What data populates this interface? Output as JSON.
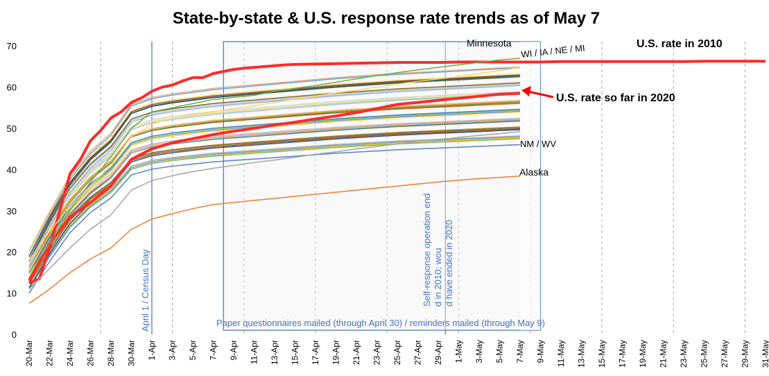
{
  "chart_data": {
    "type": "line",
    "title": "State-by-state & U.S. response rate trends as of May 7",
    "xlabel": "",
    "ylabel": "",
    "ylim": [
      0,
      70
    ],
    "yticks": [
      0,
      10,
      20,
      30,
      40,
      50,
      60,
      70
    ],
    "grid": false,
    "x_categories": [
      "20-Mar",
      "22-Mar",
      "24-Mar",
      "26-Mar",
      "28-Mar",
      "30-Mar",
      "1-Apr",
      "3-Apr",
      "5-Apr",
      "7-Apr",
      "9-Apr",
      "11-Apr",
      "13-Apr",
      "15-Apr",
      "17-Apr",
      "19-Apr",
      "21-Apr",
      "23-Apr",
      "25-Apr",
      "27-Apr",
      "29-Apr",
      "1-May",
      "3-May",
      "5-May",
      "7-May",
      "9-May",
      "11-May",
      "13-May",
      "15-May",
      "17-May",
      "19-May",
      "21-May",
      "23-May",
      "25-May",
      "27-May",
      "29-May",
      "31-May"
    ],
    "series": [
      {
        "name": "U.S. rate in 2010",
        "color": "#ff2a2a",
        "width": 4,
        "x": [
          0,
          1,
          2,
          3,
          4,
          5,
          6,
          7,
          8,
          9,
          10,
          11,
          12,
          13,
          14,
          15,
          16,
          17,
          18,
          19,
          20,
          21,
          22,
          23,
          24,
          25,
          26,
          28,
          30,
          32,
          34,
          36,
          38,
          40,
          42,
          44,
          46,
          48,
          50,
          52,
          54,
          56,
          58,
          60,
          62,
          64,
          66,
          68,
          70,
          72
        ],
        "y": [
          12.5,
          13.5,
          21,
          30,
          39,
          42.4,
          47,
          49.5,
          52.5,
          54,
          56.3,
          57.4,
          59,
          60,
          60.5,
          61.5,
          62.3,
          62.3,
          63.3,
          63.8,
          64.3,
          64.6,
          64.8,
          65,
          65.2,
          65.4,
          65.5,
          65.6,
          65.7,
          65.8,
          65.9,
          66,
          66,
          66,
          66.1,
          66.1,
          66.1,
          66.1,
          66.1,
          66.2,
          66.2,
          66.2,
          66.2,
          66.2,
          66.2,
          66.2,
          66.3,
          66.3,
          66.3,
          66.3
        ]
      },
      {
        "name": "U.S. rate so far in 2020",
        "color": "#ff2a2a",
        "width": 4,
        "x": [
          0,
          2,
          4,
          6,
          8,
          10,
          12,
          14,
          16,
          18,
          20,
          22,
          24,
          26,
          28,
          30,
          32,
          34,
          36,
          38,
          40,
          42,
          44,
          46,
          48
        ],
        "y": [
          13,
          22,
          28.5,
          32,
          36,
          42.5,
          45,
          46.5,
          47.5,
          48.5,
          49.3,
          50,
          50.8,
          51.5,
          52.3,
          53,
          53.8,
          54.8,
          55.8,
          56.3,
          56.8,
          57.3,
          57.8,
          58.3,
          58.5
        ]
      },
      {
        "name": "Minnesota",
        "color": "#70ad47",
        "width": 1.5,
        "x": [
          0,
          2,
          4,
          6,
          8,
          10,
          12,
          14,
          16,
          18,
          20,
          22,
          24,
          26,
          28,
          30,
          32,
          34,
          36,
          38,
          40,
          42,
          44,
          46,
          48
        ],
        "y": [
          15,
          22,
          30,
          37,
          43,
          50,
          54,
          55,
          56,
          57,
          57.5,
          58,
          59,
          59.7,
          60.4,
          61.2,
          62,
          62.8,
          63.5,
          64.2,
          64.8,
          65.4,
          66,
          66.6,
          67
        ]
      },
      {
        "name": "WI / IA / NE / MI",
        "color": "#ffd966",
        "width": 1.5,
        "x": [
          0,
          2,
          4,
          6,
          8,
          10,
          12,
          14,
          16,
          18,
          20,
          22,
          24,
          26,
          28,
          30,
          32,
          34,
          36,
          38,
          40,
          42,
          44,
          46,
          48
        ],
        "y": [
          18,
          25,
          31,
          36,
          41,
          48,
          51,
          52.5,
          53.3,
          54,
          54.8,
          55.5,
          56.3,
          57,
          57.8,
          58.6,
          59.3,
          60,
          60.7,
          61.4,
          62,
          62.6,
          63.3,
          64,
          64.8
        ]
      },
      {
        "name": "NM / WV",
        "color": "#a5a5a5",
        "width": 1.5,
        "x": [
          0,
          2,
          4,
          6,
          8,
          10,
          12,
          14,
          16,
          18,
          20,
          22,
          24,
          26,
          28,
          30,
          32,
          34,
          36,
          38,
          40,
          42,
          44,
          46,
          48
        ],
        "y": [
          11,
          16,
          21,
          25.5,
          29,
          35,
          37.3,
          38.5,
          39.5,
          40.3,
          41,
          41.7,
          42.3,
          43,
          43.7,
          44.3,
          45,
          45.6,
          46.2,
          46.8,
          47.3,
          47.8,
          48.3,
          48.7,
          49.2
        ]
      },
      {
        "name": "Alaska",
        "color": "#ed7d31",
        "width": 1.5,
        "x": [
          0,
          2,
          4,
          6,
          8,
          10,
          12,
          14,
          16,
          18,
          20,
          22,
          24,
          26,
          28,
          30,
          32,
          34,
          36,
          38,
          40,
          42,
          44,
          46,
          48
        ],
        "y": [
          7.5,
          11,
          15,
          18.3,
          21,
          25.5,
          28,
          29.3,
          30.5,
          31.5,
          32,
          32.5,
          33,
          33.5,
          34,
          34.5,
          35,
          35.5,
          36,
          36.5,
          37,
          37.4,
          37.8,
          38.1,
          38.4
        ]
      }
    ],
    "annotations": {
      "april1": "April 1 / Census Day",
      "self_response": "Self-response operation ended in 2010; would have ended in 2020",
      "paper": "Paper questionnaires mailed (through April 30) / reminders mailed (through May 9)",
      "us2010": "U.S. rate in 2010",
      "us2020": "U.S. rate so far in 2020",
      "minnesota": "Minnesota",
      "wi": "WI / IA / NE / MI",
      "nmwv": "NM / WV",
      "alaska": "Alaska"
    },
    "bg_palette": [
      "#4472c4",
      "#70ad47",
      "#ffc000",
      "#5b9bd5",
      "#a5a5a5",
      "#264478",
      "#9e480e",
      "#636363",
      "#997300",
      "#43682b",
      "#7cafdd",
      "#f1975a",
      "#b7b7b7",
      "#ffcd33",
      "#698ed0",
      "#8cc168",
      "#2e75b6",
      "#c55a11",
      "#548235",
      "#bf9000",
      "#f4b183",
      "#9dc3e6",
      "#a9d18e",
      "#ffe699",
      "#d0cece",
      "#8faadc",
      "#b4c7e7",
      "#c9c9c9",
      "#7f6000",
      "#385723",
      "#1f4e79",
      "#843c0c",
      "#ffd966",
      "#5a9bd5",
      "#e2a36b"
    ]
  }
}
